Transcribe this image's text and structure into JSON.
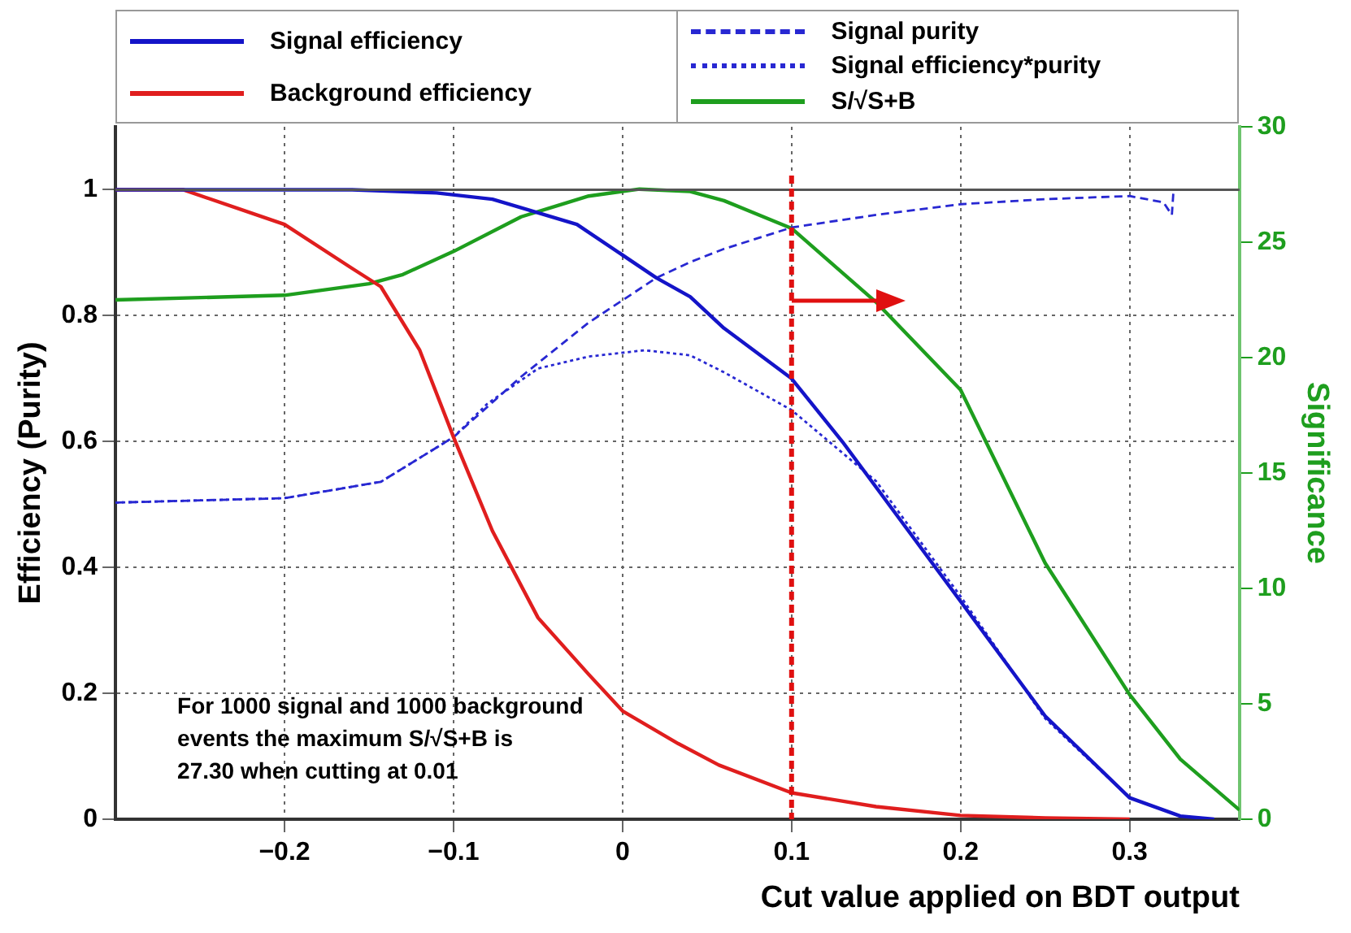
{
  "chart_data": {
    "type": "line",
    "xlabel": "Cut value applied on BDT output",
    "ylabel": "Efficiency (Purity)",
    "y2label": "Significance",
    "xlim": [
      -0.3,
      0.365
    ],
    "xticks": [
      {
        "value": -0.2,
        "label": "−0.2"
      },
      {
        "value": -0.1,
        "label": "−0.1"
      },
      0,
      0.1,
      0.2,
      0.3
    ],
    "ylim": [
      0,
      1.1
    ],
    "yticks": [
      0,
      0.2,
      0.4,
      0.6,
      0.8,
      1
    ],
    "y2lim": [
      0,
      30
    ],
    "y2ticks": [
      0,
      5,
      10,
      15,
      20,
      25,
      30
    ],
    "grid": true,
    "legend": "top",
    "marker": "none",
    "series": [
      {
        "name": "Signal efficiency",
        "color": "#1414c8",
        "line_style": "solid",
        "x": [
          -0.3,
          -0.16,
          -0.11,
          -0.077,
          -0.027,
          0.02,
          0.04,
          0.06,
          0.1,
          0.13,
          0.2,
          0.25,
          0.3,
          0.33,
          0.35
        ],
        "values": [
          1,
          1,
          0.995,
          0.985,
          0.945,
          0.86,
          0.83,
          0.78,
          0.7,
          0.6,
          0.346,
          0.164,
          0.034,
          0.005,
          0
        ]
      },
      {
        "name": "Background efficiency",
        "color": "#e01e1e",
        "line_style": "solid",
        "x": [
          -0.3,
          -0.26,
          -0.2,
          -0.16,
          -0.143,
          -0.12,
          -0.1,
          -0.077,
          -0.05,
          -0.02,
          0,
          0.033,
          0.057,
          0.1,
          0.15,
          0.2,
          0.25,
          0.3
        ],
        "values": [
          1,
          1,
          0.945,
          0.875,
          0.846,
          0.745,
          0.607,
          0.458,
          0.32,
          0.23,
          0.172,
          0.12,
          0.086,
          0.042,
          0.02,
          0.006,
          0.002,
          0
        ]
      },
      {
        "name": "Signal purity",
        "color": "#2828d2",
        "line_style": "dashed",
        "x": [
          -0.3,
          -0.2,
          -0.143,
          -0.1,
          -0.06,
          -0.02,
          0.02,
          0.04,
          0.06,
          0.1,
          0.15,
          0.2,
          0.25,
          0.3,
          0.32,
          0.325,
          0.326
        ],
        "values": [
          0.503,
          0.51,
          0.536,
          0.607,
          0.703,
          0.789,
          0.86,
          0.885,
          0.906,
          0.94,
          0.96,
          0.977,
          0.985,
          0.99,
          0.98,
          0.96,
          1
        ]
      },
      {
        "name": "Signal efficiency*purity",
        "color": "#2828d2",
        "line_style": "dotted",
        "x": [
          -0.3,
          -0.2,
          -0.143,
          -0.1,
          -0.08,
          -0.05,
          -0.02,
          0.013,
          0.04,
          0.06,
          0.1,
          0.15,
          0.2,
          0.25,
          0.3,
          0.33,
          0.35
        ],
        "values": [
          0.503,
          0.51,
          0.536,
          0.607,
          0.66,
          0.716,
          0.735,
          0.745,
          0.737,
          0.71,
          0.65,
          0.537,
          0.354,
          0.16,
          0.034,
          0.005,
          0
        ]
      },
      {
        "name": "S/√S+B",
        "color": "#1e9e1e",
        "line_style": "solid",
        "axis": "y2",
        "x": [
          -0.3,
          -0.2,
          -0.15,
          -0.13,
          -0.1,
          -0.06,
          -0.02,
          0.01,
          0.04,
          0.06,
          0.1,
          0.15,
          0.2,
          0.25,
          0.3,
          0.33,
          0.365
        ],
        "values": [
          22.5,
          22.7,
          23.2,
          23.6,
          24.6,
          26.1,
          27,
          27.3,
          27.2,
          26.8,
          25.6,
          22.4,
          18.6,
          11.1,
          5.4,
          2.6,
          0.4
        ]
      }
    ],
    "ref_lines": [
      {
        "axis": "y",
        "value": 1,
        "color": "#555555",
        "line_style": "solid"
      },
      {
        "axis": "x",
        "value": 0.1,
        "color": "#e01010",
        "line_style": "dashed"
      }
    ],
    "annotations": [
      "For 1000 signal and 1000 background\nevents the maximum S/√S+B is\n27.30 when cutting at  0.01"
    ]
  }
}
